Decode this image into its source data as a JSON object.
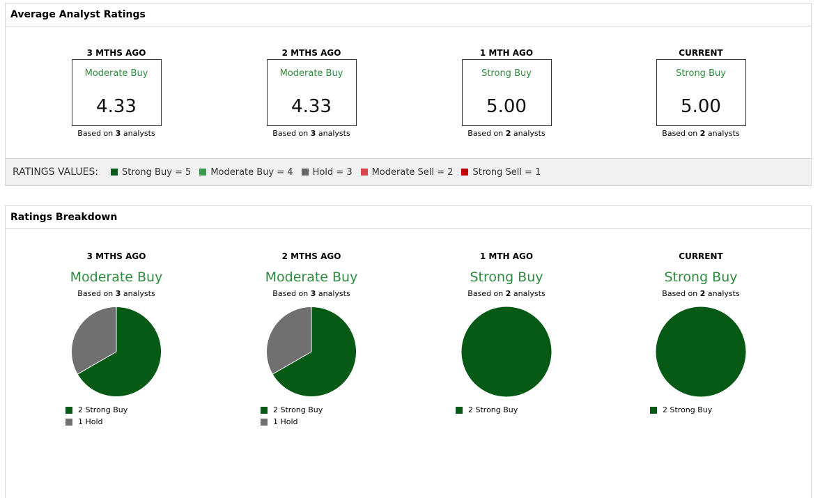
{
  "avg_panel": {
    "title": "Average Analyst Ratings",
    "periods": [
      {
        "label": "3 MTHS AGO",
        "rating": "Moderate Buy",
        "value": "4.33",
        "based_prefix": "Based on ",
        "count": "3",
        "based_suffix": " analysts"
      },
      {
        "label": "2 MTHS AGO",
        "rating": "Moderate Buy",
        "value": "4.33",
        "based_prefix": "Based on ",
        "count": "3",
        "based_suffix": " analysts"
      },
      {
        "label": "1 MTH AGO",
        "rating": "Strong Buy",
        "value": "5.00",
        "based_prefix": "Based on ",
        "count": "2",
        "based_suffix": " analysts"
      },
      {
        "label": "CURRENT",
        "rating": "Strong Buy",
        "value": "5.00",
        "based_prefix": "Based on ",
        "count": "2",
        "based_suffix": " analysts"
      }
    ],
    "legend_title": "RATINGS VALUES:",
    "legend": [
      {
        "label": "Strong Buy = 5",
        "color": "#0a5c1a"
      },
      {
        "label": "Moderate Buy = 4",
        "color": "#3a9a47"
      },
      {
        "label": "Hold = 3",
        "color": "#666666"
      },
      {
        "label": "Moderate Sell = 2",
        "color": "#d9474b"
      },
      {
        "label": "Strong Sell = 1",
        "color": "#c40000"
      }
    ]
  },
  "breakdown_panel": {
    "title": "Ratings Breakdown"
  },
  "chart_data": [
    {
      "type": "pie",
      "title": "3 MTHS AGO",
      "subtitle": "Moderate Buy",
      "count": "3",
      "based_prefix": "Based on ",
      "based_suffix": " analysts",
      "slices": [
        {
          "label": "2 Strong Buy",
          "value": 2,
          "color": "#065a16"
        },
        {
          "label": "1 Hold",
          "value": 1,
          "color": "#707070"
        }
      ]
    },
    {
      "type": "pie",
      "title": "2 MTHS AGO",
      "subtitle": "Moderate Buy",
      "count": "3",
      "based_prefix": "Based on ",
      "based_suffix": " analysts",
      "slices": [
        {
          "label": "2 Strong Buy",
          "value": 2,
          "color": "#065a16"
        },
        {
          "label": "1 Hold",
          "value": 1,
          "color": "#707070"
        }
      ]
    },
    {
      "type": "pie",
      "title": "1 MTH AGO",
      "subtitle": "Strong Buy",
      "count": "2",
      "based_prefix": "Based on ",
      "based_suffix": " analysts",
      "slices": [
        {
          "label": "2 Strong Buy",
          "value": 2,
          "color": "#065a16"
        }
      ]
    },
    {
      "type": "pie",
      "title": "CURRENT",
      "subtitle": "Strong Buy",
      "count": "2",
      "based_prefix": "Based on ",
      "based_suffix": " analysts",
      "slices": [
        {
          "label": "2 Strong Buy",
          "value": 2,
          "color": "#065a16"
        }
      ]
    }
  ]
}
